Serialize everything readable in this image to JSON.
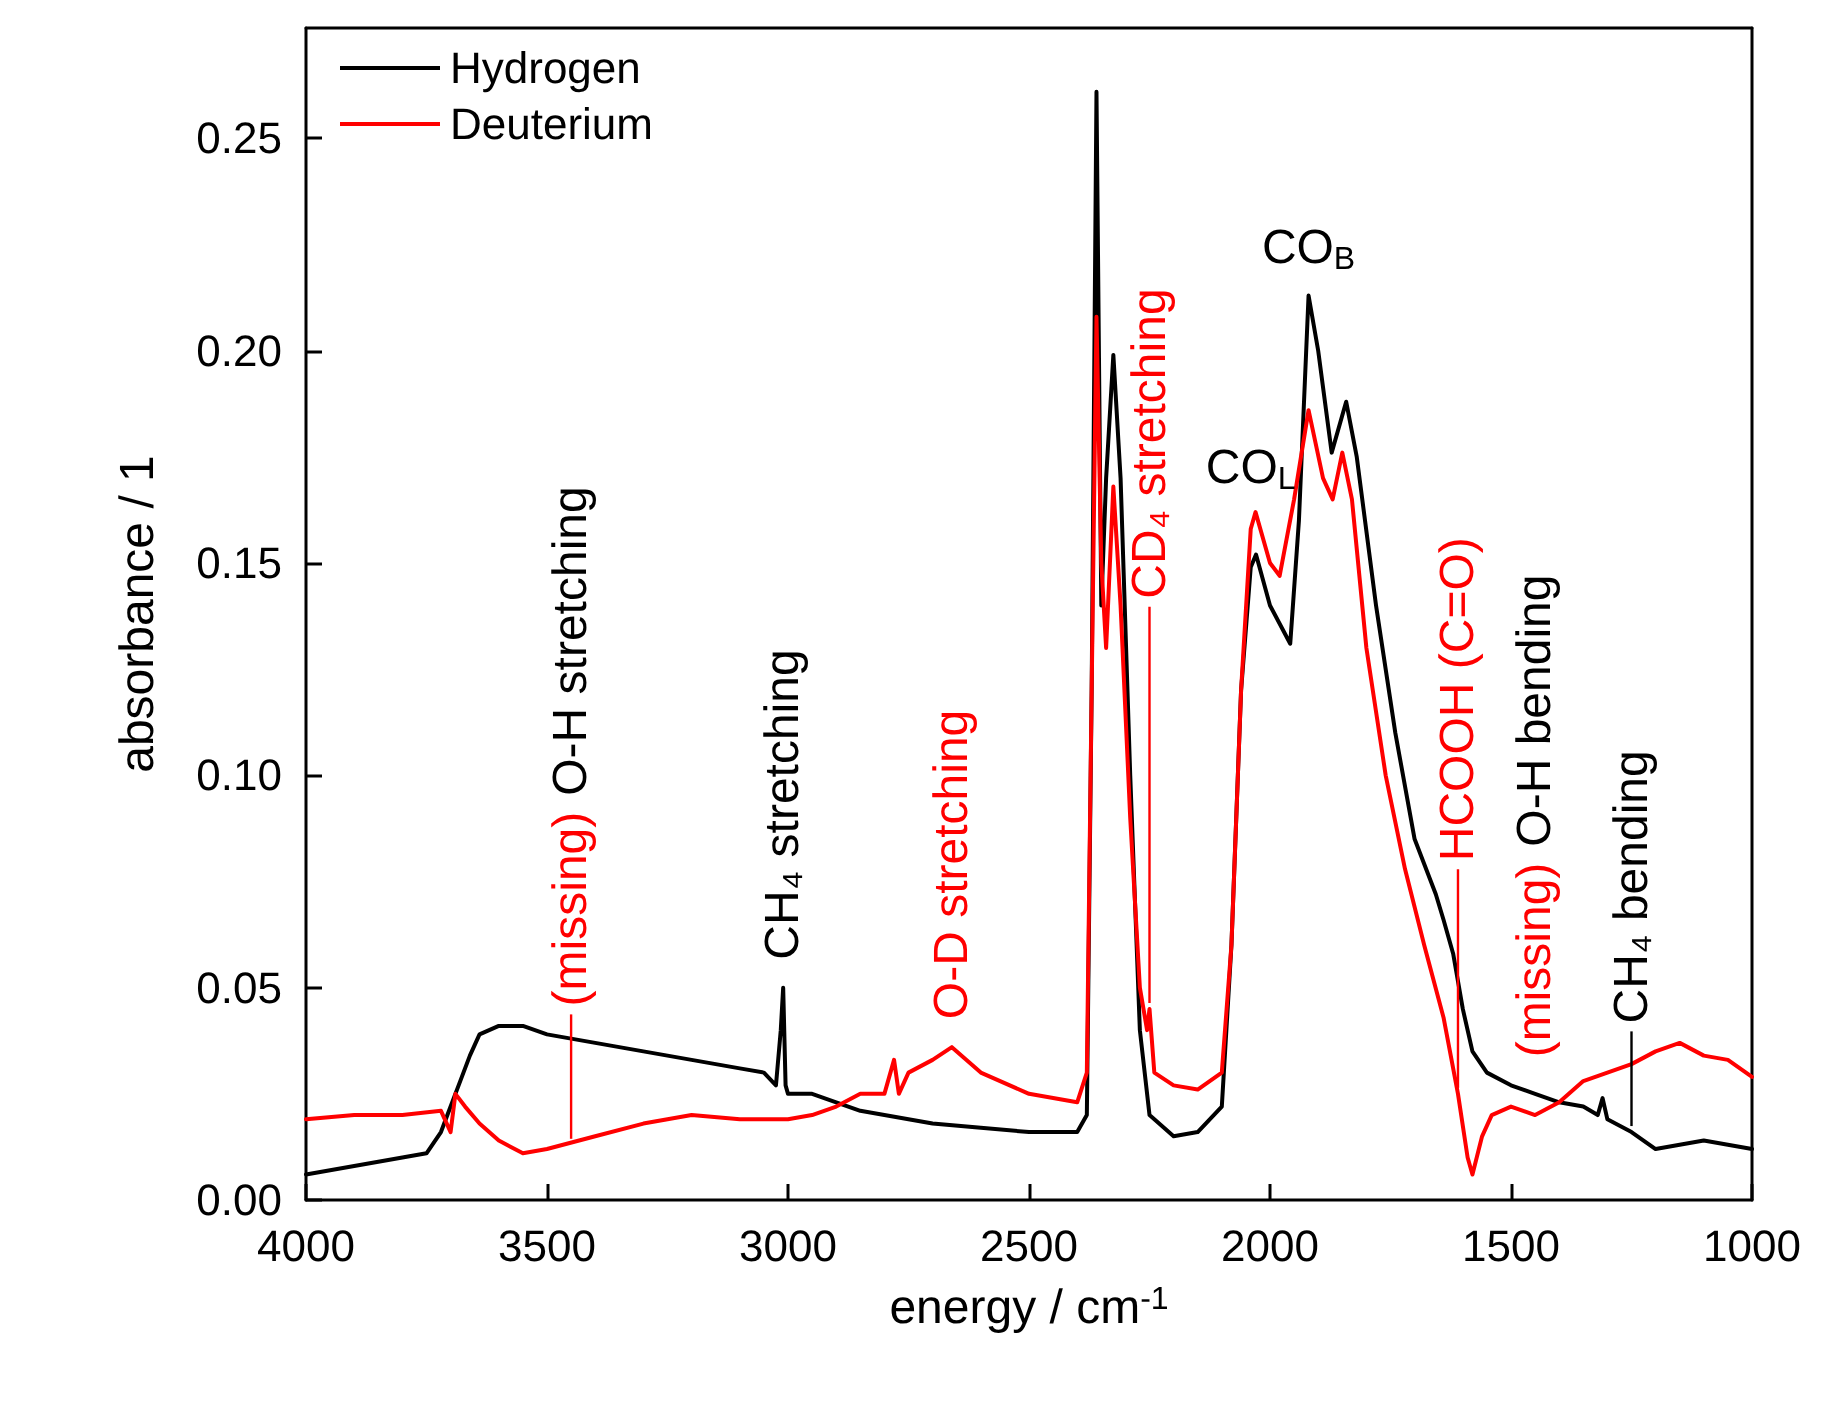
{
  "chart_data": {
    "type": "line",
    "xlabel": "energy / cm$^{-1}$",
    "ylabel": "absorbance / 1",
    "xlim": [
      4000,
      1000
    ],
    "xticks": [
      4000,
      3500,
      3000,
      2500,
      2000,
      1500,
      1000
    ],
    "ylim": [
      0,
      0.276
    ],
    "yticks": [
      {
        "value": 0,
        "label": "0.00"
      },
      {
        "value": 0.05,
        "label": "0.05"
      },
      {
        "value": 0.1,
        "label": "0.10"
      },
      {
        "value": 0.15,
        "label": "0.15"
      },
      {
        "value": 0.2,
        "label": "0.20"
      },
      {
        "value": 0.25,
        "label": "0.25"
      }
    ],
    "grid": false,
    "legend": "top left",
    "marker": "none",
    "line_style": "solid",
    "series": [
      {
        "name": "Hydrogen",
        "color": "#000000",
        "x": [
          4000,
          3900,
          3800,
          3750,
          3720,
          3700,
          3680,
          3660,
          3640,
          3600,
          3550,
          3500,
          3400,
          3300,
          3200,
          3100,
          3050,
          3025,
          3015,
          3010,
          3005,
          3000,
          2950,
          2900,
          2850,
          2800,
          2700,
          2600,
          2500,
          2400,
          2380,
          2370,
          2360,
          2350,
          2340,
          2325,
          2310,
          2290,
          2270,
          2250,
          2200,
          2150,
          2100,
          2080,
          2060,
          2040,
          2029,
          2000,
          1958,
          1940,
          1920,
          1900,
          1872,
          1842,
          1820,
          1780,
          1740,
          1700,
          1656,
          1640,
          1620,
          1600,
          1580,
          1550,
          1500,
          1450,
          1400,
          1350,
          1320,
          1310,
          1300,
          1250,
          1200,
          1150,
          1100,
          1050,
          1000
        ],
        "values": [
          0.006,
          0.008,
          0.01,
          0.011,
          0.016,
          0.022,
          0.028,
          0.034,
          0.039,
          0.041,
          0.041,
          0.039,
          0.037,
          0.035,
          0.033,
          0.031,
          0.03,
          0.027,
          0.04,
          0.05,
          0.027,
          0.025,
          0.025,
          0.023,
          0.021,
          0.02,
          0.018,
          0.017,
          0.016,
          0.016,
          0.02,
          0.12,
          0.261,
          0.14,
          0.17,
          0.199,
          0.17,
          0.1,
          0.04,
          0.02,
          0.015,
          0.016,
          0.022,
          0.06,
          0.12,
          0.149,
          0.152,
          0.14,
          0.131,
          0.16,
          0.213,
          0.2,
          0.176,
          0.188,
          0.175,
          0.14,
          0.11,
          0.085,
          0.072,
          0.066,
          0.058,
          0.045,
          0.035,
          0.03,
          0.027,
          0.025,
          0.023,
          0.022,
          0.02,
          0.024,
          0.019,
          0.016,
          0.012,
          0.013,
          0.014,
          0.013,
          0.012
        ]
      },
      {
        "name": "Deuterium",
        "color": "#ff0000",
        "x": [
          4000,
          3900,
          3800,
          3720,
          3700,
          3690,
          3670,
          3640,
          3600,
          3550,
          3500,
          3400,
          3300,
          3200,
          3100,
          3000,
          2950,
          2900,
          2850,
          2800,
          2780,
          2770,
          2750,
          2700,
          2660,
          2600,
          2500,
          2400,
          2380,
          2370,
          2360,
          2350,
          2340,
          2325,
          2310,
          2290,
          2270,
          2255,
          2250,
          2240,
          2200,
          2150,
          2100,
          2080,
          2060,
          2040,
          2030,
          2000,
          1980,
          1950,
          1920,
          1890,
          1870,
          1850,
          1830,
          1800,
          1760,
          1720,
          1680,
          1640,
          1610,
          1590,
          1580,
          1560,
          1540,
          1500,
          1450,
          1400,
          1350,
          1300,
          1250,
          1200,
          1150,
          1100,
          1050,
          1000
        ],
        "values": [
          0.019,
          0.02,
          0.02,
          0.021,
          0.016,
          0.025,
          0.022,
          0.018,
          0.014,
          0.011,
          0.012,
          0.015,
          0.018,
          0.02,
          0.019,
          0.019,
          0.02,
          0.022,
          0.025,
          0.025,
          0.033,
          0.025,
          0.03,
          0.033,
          0.036,
          0.03,
          0.025,
          0.023,
          0.03,
          0.12,
          0.208,
          0.15,
          0.13,
          0.168,
          0.14,
          0.09,
          0.05,
          0.04,
          0.045,
          0.03,
          0.027,
          0.026,
          0.03,
          0.06,
          0.12,
          0.158,
          0.162,
          0.15,
          0.147,
          0.165,
          0.186,
          0.17,
          0.165,
          0.176,
          0.165,
          0.13,
          0.1,
          0.078,
          0.06,
          0.043,
          0.025,
          0.01,
          0.006,
          0.015,
          0.02,
          0.022,
          0.02,
          0.023,
          0.028,
          0.03,
          0.032,
          0.035,
          0.037,
          0.034,
          0.033,
          0.029
        ]
      }
    ],
    "annotations": [
      {
        "text": "(missing)",
        "x": 3450,
        "y": 0.013
      },
      "O-H stretching",
      {
        "text": "CH₄ stretching",
        "x": 3010,
        "y": 0.05
      },
      {
        "text": "O-D stretching",
        "x": 2660,
        "y": 0.036
      },
      {
        "text": "CD₄ stretching",
        "x": 2250,
        "y": 0.045
      },
      {
        "text": "CO$_{L}$",
        "x": 2040,
        "y": 0.149
      },
      {
        "text": "CO$_{B}$",
        "x": 1920,
        "y": 0.213
      },
      {
        "text": "HCOOH (C=O)",
        "x": 1610,
        "y": 0.025
      },
      {
        "text": "(missing)",
        "x": 1450,
        "y": 0.02
      },
      "O-H bending",
      {
        "text": "CH₄ bending",
        "x": 1250,
        "y": 0.016
      }
    ]
  }
}
